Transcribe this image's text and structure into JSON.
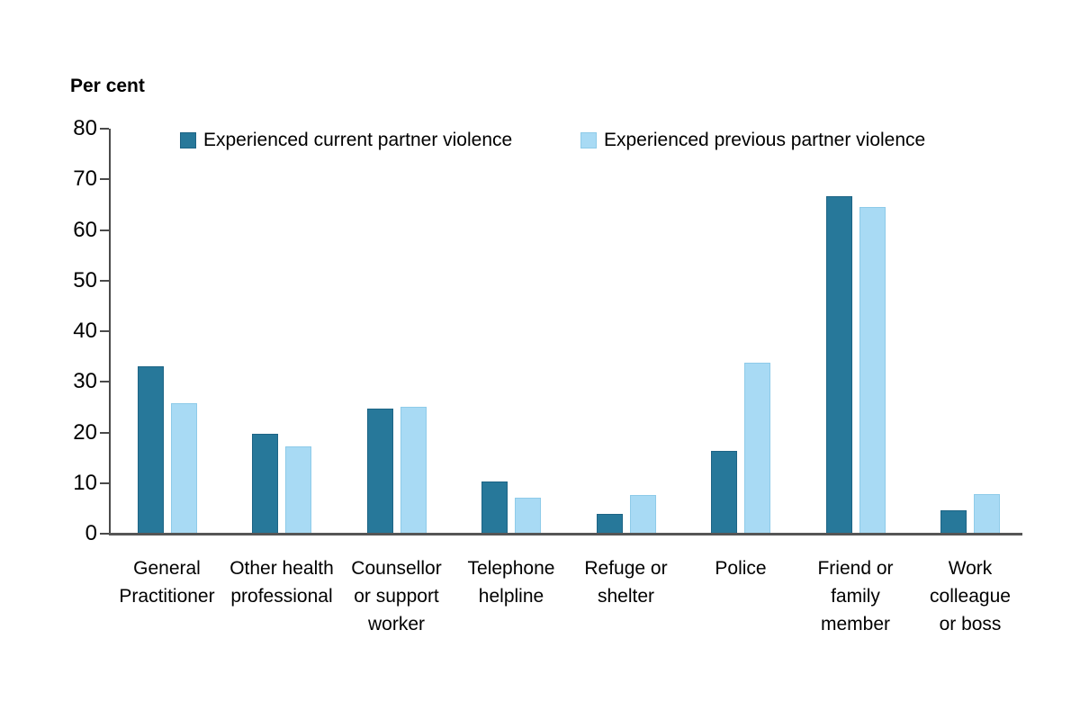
{
  "chart_data": {
    "type": "bar",
    "title": "Per cent",
    "ylabel": "Per cent",
    "xlabel": "",
    "ylim": [
      0,
      80
    ],
    "yticks": [
      0,
      10,
      20,
      30,
      40,
      50,
      60,
      70,
      80
    ],
    "grid": false,
    "legend_position": "top-inside",
    "axis_color": "#4a4a4a",
    "categories": [
      "General\nPractitioner",
      "Other health\nprofessional",
      "Counsellor\nor support\nworker",
      "Telephone\nhelpline",
      "Refuge or\nshelter",
      "Police",
      "Friend or\nfamily\nmember",
      "Work\ncolleague\nor boss"
    ],
    "series": [
      {
        "name": "Experienced current partner violence",
        "color": "#27789a",
        "border_color": "#1d6485",
        "values": [
          33.0,
          19.7,
          24.7,
          10.4,
          4.0,
          16.4,
          66.6,
          4.7
        ]
      },
      {
        "name": "Experienced previous partner violence",
        "color": "#a8daf4",
        "border_color": "#8ecbe9",
        "values": [
          25.7,
          17.2,
          25.1,
          7.2,
          7.6,
          33.7,
          64.5,
          7.8
        ]
      }
    ]
  }
}
